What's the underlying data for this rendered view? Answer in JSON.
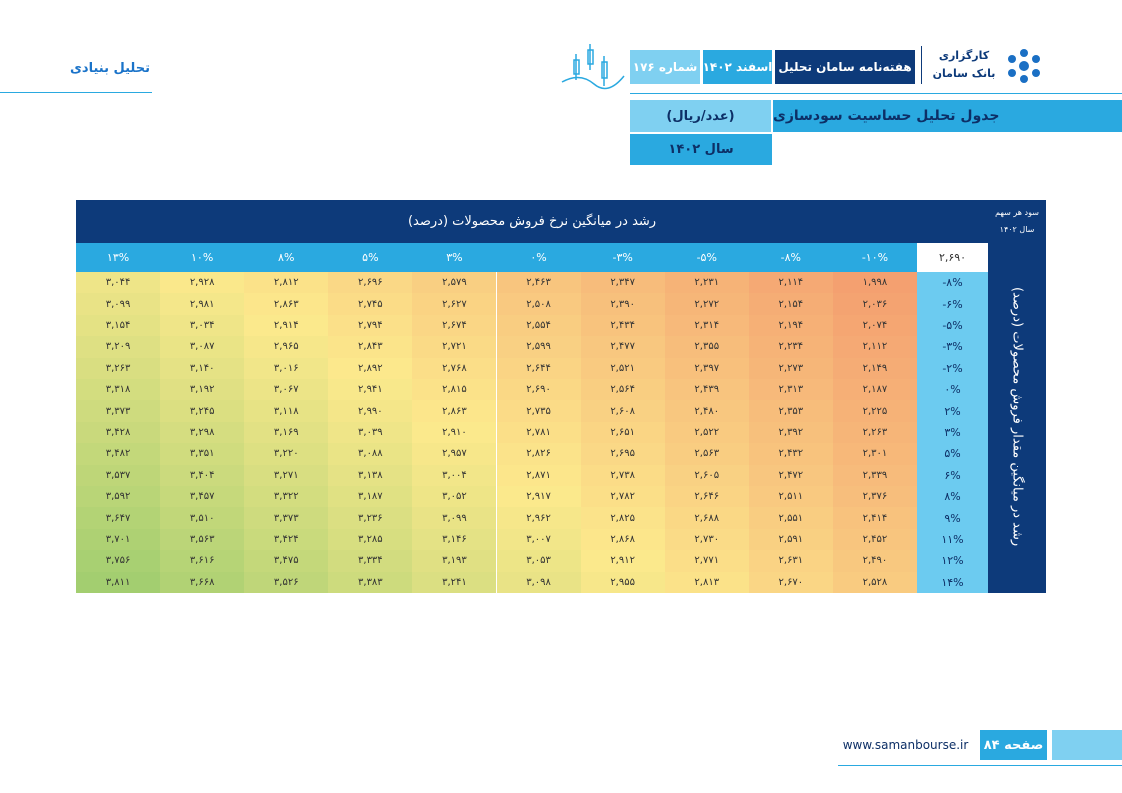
{
  "header": {
    "section": "تحلیل بنیادی",
    "brand_line1": "کارگزاری",
    "brand_line2": "بانک سامان",
    "publication": "هفته‌نامه سامان تحلیل",
    "date": "اسفند ۱۴۰۲",
    "issue": "شماره ۱۷۶"
  },
  "title": {
    "text": "جدول تحلیل حساسیت سودسازی",
    "unit": "(عدد/ریال)",
    "year": "سال ۱۴۰۲"
  },
  "table": {
    "corner": [
      "سود هر سهم",
      "سال ۱۴۰۲"
    ],
    "column_axis": "رشد در میانگین نرخ فروش محصولات (درصد)",
    "row_axis": "رشد در میانگین مقدار فروش محصولات (درصد)",
    "base": "۲,۶۹۰",
    "columns": [
      "-۱۰%",
      "-۸%",
      "-۵%",
      "-۳%",
      "۰%",
      "۳%",
      "۵%",
      "۸%",
      "۱۰%",
      "۱۳%"
    ],
    "rows": [
      {
        "label": "-۸%",
        "cells": [
          "۱,۹۹۸",
          "۲,۱۱۴",
          "۲,۲۳۱",
          "۲,۳۴۷",
          "۲,۴۶۳",
          "۲,۵۷۹",
          "۲,۶۹۶",
          "۲,۸۱۲",
          "۲,۹۲۸",
          "۳,۰۴۴"
        ]
      },
      {
        "label": "-۶%",
        "cells": [
          "۲,۰۳۶",
          "۲,۱۵۴",
          "۲,۲۷۲",
          "۲,۳۹۰",
          "۲,۵۰۸",
          "۲,۶۲۷",
          "۲,۷۴۵",
          "۲,۸۶۳",
          "۲,۹۸۱",
          "۳,۰۹۹"
        ]
      },
      {
        "label": "-۵%",
        "cells": [
          "۲,۰۷۴",
          "۲,۱۹۴",
          "۲,۳۱۴",
          "۲,۴۳۴",
          "۲,۵۵۴",
          "۲,۶۷۴",
          "۲,۷۹۴",
          "۲,۹۱۴",
          "۳,۰۳۴",
          "۳,۱۵۴"
        ]
      },
      {
        "label": "-۳%",
        "cells": [
          "۲,۱۱۲",
          "۲,۲۳۴",
          "۲,۳۵۵",
          "۲,۴۷۷",
          "۲,۵۹۹",
          "۲,۷۲۱",
          "۲,۸۴۳",
          "۲,۹۶۵",
          "۳,۰۸۷",
          "۳,۲۰۹"
        ]
      },
      {
        "label": "-۲%",
        "cells": [
          "۲,۱۴۹",
          "۲,۲۷۳",
          "۲,۳۹۷",
          "۲,۵۲۱",
          "۲,۶۴۴",
          "۲,۷۶۸",
          "۲,۸۹۲",
          "۳,۰۱۶",
          "۳,۱۴۰",
          "۳,۲۶۳"
        ]
      },
      {
        "label": "۰%",
        "cells": [
          "۲,۱۸۷",
          "۲,۳۱۳",
          "۲,۴۳۹",
          "۲,۵۶۴",
          "۲,۶۹۰",
          "۲,۸۱۵",
          "۲,۹۴۱",
          "۳,۰۶۷",
          "۳,۱۹۲",
          "۳,۳۱۸"
        ]
      },
      {
        "label": "۲%",
        "cells": [
          "۲,۲۲۵",
          "۲,۳۵۳",
          "۲,۴۸۰",
          "۲,۶۰۸",
          "۲,۷۳۵",
          "۲,۸۶۳",
          "۲,۹۹۰",
          "۳,۱۱۸",
          "۳,۲۴۵",
          "۳,۳۷۳"
        ]
      },
      {
        "label": "۳%",
        "cells": [
          "۲,۲۶۳",
          "۲,۳۹۲",
          "۲,۵۲۲",
          "۲,۶۵۱",
          "۲,۷۸۱",
          "۲,۹۱۰",
          "۳,۰۳۹",
          "۳,۱۶۹",
          "۳,۲۹۸",
          "۳,۴۲۸"
        ]
      },
      {
        "label": "۵%",
        "cells": [
          "۲,۳۰۱",
          "۲,۴۳۲",
          "۲,۵۶۳",
          "۲,۶۹۵",
          "۲,۸۲۶",
          "۲,۹۵۷",
          "۳,۰۸۸",
          "۳,۲۲۰",
          "۳,۳۵۱",
          "۳,۴۸۲"
        ]
      },
      {
        "label": "۶%",
        "cells": [
          "۲,۳۳۹",
          "۲,۴۷۲",
          "۲,۶۰۵",
          "۲,۷۳۸",
          "۲,۸۷۱",
          "۳,۰۰۴",
          "۳,۱۳۸",
          "۳,۲۷۱",
          "۳,۴۰۴",
          "۳,۵۳۷"
        ]
      },
      {
        "label": "۸%",
        "cells": [
          "۲,۳۷۶",
          "۲,۵۱۱",
          "۲,۶۴۶",
          "۲,۷۸۲",
          "۲,۹۱۷",
          "۳,۰۵۲",
          "۳,۱۸۷",
          "۳,۳۲۲",
          "۳,۴۵۷",
          "۳,۵۹۲"
        ]
      },
      {
        "label": "۹%",
        "cells": [
          "۲,۴۱۴",
          "۲,۵۵۱",
          "۲,۶۸۸",
          "۲,۸۲۵",
          "۲,۹۶۲",
          "۳,۰۹۹",
          "۳,۲۳۶",
          "۳,۳۷۳",
          "۳,۵۱۰",
          "۳,۶۴۷"
        ]
      },
      {
        "label": "۱۱%",
        "cells": [
          "۲,۴۵۲",
          "۲,۵۹۱",
          "۲,۷۳۰",
          "۲,۸۶۸",
          "۳,۰۰۷",
          "۳,۱۴۶",
          "۳,۲۸۵",
          "۳,۴۲۴",
          "۳,۵۶۳",
          "۳,۷۰۱"
        ]
      },
      {
        "label": "۱۲%",
        "cells": [
          "۲,۴۹۰",
          "۲,۶۳۱",
          "۲,۷۷۱",
          "۲,۹۱۲",
          "۳,۰۵۳",
          "۳,۱۹۳",
          "۳,۳۳۴",
          "۳,۴۷۵",
          "۳,۶۱۶",
          "۳,۷۵۶"
        ]
      },
      {
        "label": "۱۴%",
        "cells": [
          "۲,۵۲۸",
          "۲,۶۷۰",
          "۲,۸۱۳",
          "۲,۹۵۵",
          "۳,۰۹۸",
          "۳,۲۴۱",
          "۳,۳۸۳",
          "۳,۵۲۶",
          "۳,۶۶۸",
          "۳,۸۱۱"
        ]
      }
    ]
  },
  "footer": {
    "url": "www.samanbourse.ir",
    "page": "صفحه ۸۴"
  }
}
